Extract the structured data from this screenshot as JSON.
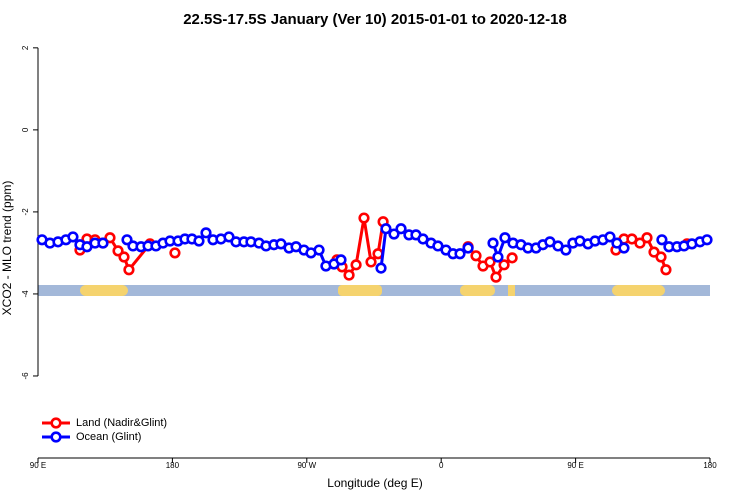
{
  "chart_data": {
    "type": "line",
    "title": "22.5S-17.5S January (Ver 10)   2015-01-01 to 2020-12-18",
    "x_label": "Longitude (deg E)",
    "y_label": "XCO2 - MLO trend (ppm)",
    "xlim": [
      90,
      540
    ],
    "xticks": [
      {
        "value": 90,
        "label": "90 E"
      },
      180,
      {
        "value": 270,
        "label": "90 W"
      },
      {
        "value": 360,
        "label": "0"
      },
      {
        "value": 450,
        "label": "90 E"
      },
      {
        "value": 540,
        "label": "180"
      }
    ],
    "ylim": [
      -8,
      2.24
    ],
    "yticks": [
      -6,
      -4,
      -2,
      0,
      2
    ],
    "legend": "bottom-left",
    "series": [
      {
        "name": "Land (Nadir&Glint)",
        "color": "#ff0000",
        "x": [
          118.1,
          122.8,
          128.2,
          133.5,
          138.2,
          143.6,
          147.6,
          150.9,
          165.0,
          173.0,
          181.7,
          250.0,
          290.2,
          293.6,
          298.3,
          303.0,
          308.3,
          313.0,
          317.7,
          321.1,
          350.0,
          378.0,
          383.3,
          388.0,
          392.7,
          396.7,
          402.1,
          407.5,
          440.0,
          477.0,
          482.4,
          487.7,
          493.1,
          497.8,
          502.5,
          507.2,
          510.5,
          518.0,
          524.6
        ],
        "values": [
          -2.93,
          -2.66,
          -2.68,
          -2.76,
          -2.63,
          -2.95,
          -3.1,
          -3.41,
          -2.78,
          null,
          -3.0,
          null,
          -3.17,
          -3.34,
          -3.54,
          -3.29,
          -2.15,
          -3.22,
          -3.02,
          -2.24,
          null,
          -2.85,
          -3.07,
          -3.32,
          -3.22,
          -3.59,
          -3.29,
          -3.12,
          null,
          -2.93,
          -2.66,
          -2.66,
          -2.76,
          -2.63,
          -2.98,
          -3.1,
          -3.41,
          null,
          -2.78
        ]
      },
      {
        "name": "Ocean (Glint)",
        "color": "#0000ff",
        "x": [
          92.7,
          98.0,
          103.4,
          108.7,
          113.4,
          118.1,
          122.8,
          128.2,
          133.5,
          141.0,
          149.6,
          153.6,
          159.0,
          163.7,
          169.0,
          173.7,
          178.4,
          183.8,
          188.4,
          193.1,
          197.8,
          202.5,
          207.2,
          212.5,
          217.9,
          222.6,
          227.9,
          232.6,
          238.0,
          242.7,
          248.0,
          252.7,
          258.1,
          262.8,
          268.1,
          272.8,
          278.2,
          282.8,
          288.2,
          292.9,
          305.0,
          319.7,
          323.0,
          328.4,
          333.1,
          338.4,
          343.1,
          347.8,
          353.2,
          357.8,
          363.2,
          367.9,
          372.6,
          378.0,
          386.0,
          394.7,
          398.0,
          402.7,
          408.1,
          413.4,
          418.1,
          423.5,
          428.1,
          432.8,
          438.2,
          443.5,
          448.2,
          452.9,
          458.3,
          463.0,
          468.3,
          473.0,
          477.7,
          482.4,
          495.0,
          507.8,
          512.5,
          517.9,
          522.6,
          527.9,
          533.3,
          538.0
        ],
        "values": [
          -2.68,
          -2.76,
          -2.73,
          -2.68,
          -2.61,
          -2.8,
          -2.85,
          -2.76,
          -2.76,
          null,
          -2.68,
          -2.83,
          -2.85,
          -2.83,
          -2.83,
          -2.76,
          -2.71,
          -2.71,
          -2.66,
          -2.66,
          -2.71,
          -2.51,
          -2.68,
          -2.66,
          -2.61,
          -2.73,
          -2.73,
          -2.73,
          -2.76,
          -2.83,
          -2.8,
          -2.78,
          -2.88,
          -2.85,
          -2.93,
          -3.0,
          -2.93,
          -3.32,
          -3.27,
          -3.17,
          null,
          -3.37,
          -2.41,
          -2.54,
          -2.41,
          -2.56,
          -2.56,
          -2.66,
          -2.76,
          -2.83,
          -2.93,
          -3.02,
          -3.02,
          -2.88,
          null,
          -2.76,
          -3.1,
          -2.63,
          -2.76,
          -2.8,
          -2.88,
          -2.88,
          -2.8,
          -2.73,
          -2.83,
          -2.93,
          -2.76,
          -2.71,
          -2.78,
          -2.71,
          -2.68,
          -2.61,
          -2.76,
          -2.88,
          null,
          -2.68,
          -2.85,
          -2.85,
          -2.83,
          -2.78,
          -2.73,
          -2.68
        ]
      }
    ]
  }
}
